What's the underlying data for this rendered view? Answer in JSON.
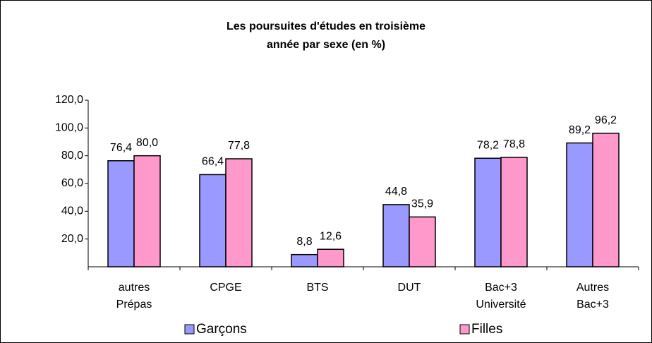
{
  "chart_data": {
    "type": "bar",
    "title": [
      "Les poursuites d'études en troisième",
      "année par sexe (en  %)"
    ],
    "categories": [
      [
        "autres",
        "Prépas"
      ],
      [
        "CPGE"
      ],
      [
        "BTS"
      ],
      [
        "DUT"
      ],
      [
        "Bac+3",
        "Université"
      ],
      [
        "Autres",
        "Bac+3"
      ]
    ],
    "series": [
      {
        "name": "Garçons",
        "color": "#9999ff",
        "values": [
          76.4,
          66.4,
          8.8,
          44.8,
          78.2,
          89.2
        ],
        "value_labels": [
          "76,4",
          "66,4",
          "8,8",
          "44,8",
          "78,2",
          "89,2"
        ]
      },
      {
        "name": "Filles",
        "color": "#ff99cc",
        "values": [
          80.0,
          77.8,
          12.6,
          35.9,
          78.8,
          96.2
        ],
        "value_labels": [
          "80,0",
          "77,8",
          "12,6",
          "35,9",
          "78,8",
          "96,2"
        ]
      }
    ],
    "ylim": [
      0,
      120
    ],
    "yticks": [
      {
        "value": 20,
        "label": "20,0"
      },
      {
        "value": 40,
        "label": "40,0"
      },
      {
        "value": 60,
        "label": "60,0"
      },
      {
        "value": 80,
        "label": "80,0"
      },
      {
        "value": 100,
        "label": "100,0"
      },
      {
        "value": 120,
        "label": "120,0"
      }
    ],
    "grid": false,
    "legend": "bottom"
  }
}
